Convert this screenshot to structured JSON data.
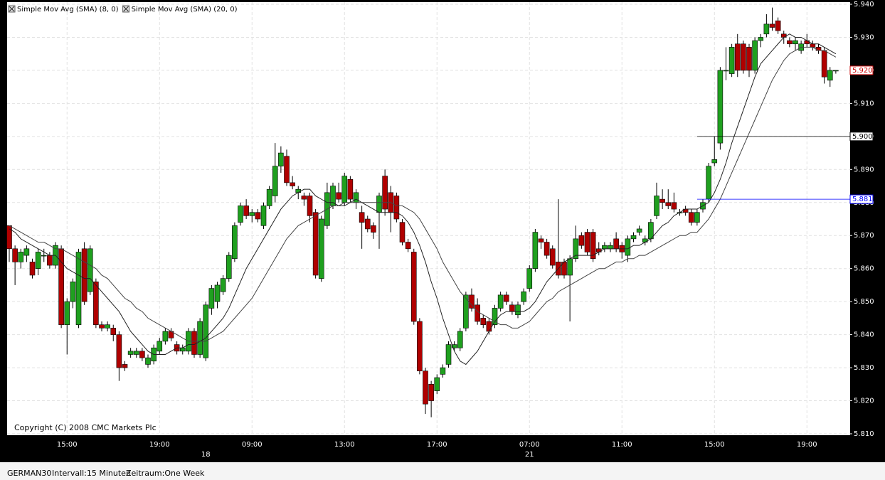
{
  "chart_data": {
    "type": "candlestick",
    "categories": [
      null,
      null,
      null,
      null,
      null,
      null,
      null,
      null,
      null,
      null,
      "15:00",
      null,
      null,
      null,
      null,
      null,
      null,
      null,
      null,
      null,
      null,
      null,
      null,
      null,
      null,
      null,
      "19:00",
      null,
      null,
      null,
      null,
      null,
      null,
      null,
      null,
      null,
      null,
      null,
      null,
      null,
      null,
      null,
      "09:00",
      null,
      null,
      null,
      null,
      null,
      null,
      null,
      null,
      null,
      null,
      null,
      null,
      null,
      null,
      null,
      "13:00",
      null,
      null,
      null,
      null,
      null,
      null,
      null,
      null,
      null,
      null,
      null,
      null,
      null,
      null,
      null,
      "17:00",
      null,
      null,
      null,
      null,
      null,
      null,
      null,
      null,
      null,
      null,
      null,
      null,
      null,
      null,
      null,
      "07:00",
      null,
      null,
      null,
      null,
      null,
      null,
      null,
      null,
      null,
      null,
      null,
      null,
      null,
      null,
      null,
      "11:00",
      null,
      null,
      null,
      null,
      null,
      null,
      null,
      null,
      null,
      null,
      null,
      null,
      null,
      null,
      null,
      "15:00",
      null,
      null,
      null,
      null,
      null,
      null,
      null,
      null,
      null,
      null,
      null,
      null,
      null,
      null,
      null,
      "19:00",
      null,
      null,
      null,
      null,
      null
    ],
    "day_labels": [
      null,
      null,
      null,
      null,
      null,
      null,
      null,
      null,
      null,
      null,
      null,
      null,
      null,
      null,
      null,
      null,
      null,
      null,
      null,
      null,
      null,
      null,
      null,
      null,
      null,
      null,
      null,
      null,
      null,
      null,
      null,
      null,
      null,
      null,
      "18",
      null,
      null,
      null,
      null,
      null,
      null,
      null,
      null,
      null,
      null,
      null,
      null,
      null,
      null,
      null,
      null,
      null,
      null,
      null,
      null,
      null,
      null,
      null,
      null,
      null,
      null,
      null,
      null,
      null,
      null,
      null,
      null,
      null,
      null,
      null,
      null,
      null,
      null,
      null,
      null,
      null,
      null,
      null,
      null,
      null,
      null,
      null,
      null,
      null,
      null,
      null,
      null,
      null,
      null,
      null,
      "21",
      null,
      null,
      null,
      null,
      null,
      null,
      null,
      null,
      null,
      null,
      null,
      null,
      null,
      null,
      null,
      null,
      null,
      null,
      null,
      null,
      null,
      null,
      null,
      null,
      null,
      null,
      null,
      null,
      null,
      null,
      null,
      null,
      null,
      null,
      null,
      null,
      null,
      null,
      null,
      null,
      null,
      null,
      null,
      null,
      null,
      null,
      null,
      null,
      null,
      null,
      null,
      null
    ],
    "open": [
      5.873,
      5.866,
      5.862,
      5.864,
      5.862,
      5.86,
      5.864,
      5.864,
      5.861,
      5.866,
      5.843,
      5.85,
      5.843,
      5.866,
      5.853,
      5.856,
      5.843,
      5.842,
      5.842,
      5.84,
      5.831,
      5.834,
      5.834,
      5.835,
      5.831,
      5.832,
      5.835,
      5.838,
      5.841,
      5.837,
      5.835,
      5.835,
      5.841,
      5.834,
      5.833,
      5.848,
      5.85,
      5.853,
      5.857,
      5.863,
      5.874,
      5.879,
      5.876,
      5.877,
      5.873,
      5.879,
      5.882,
      5.891,
      5.894,
      5.886,
      5.883,
      5.882,
      5.882,
      5.877,
      5.857,
      5.873,
      5.879,
      5.883,
      5.88,
      5.887,
      5.88,
      5.877,
      5.875,
      5.873,
      5.877,
      5.888,
      5.883,
      5.882,
      5.874,
      5.868,
      5.865,
      5.844,
      5.829,
      5.825,
      5.823,
      5.828,
      5.831,
      5.836,
      5.836,
      5.842,
      5.852,
      5.849,
      5.845,
      5.844,
      5.843,
      5.848,
      5.852,
      5.849,
      5.846,
      5.85,
      5.854,
      5.86,
      5.869,
      5.868,
      5.866,
      5.862,
      5.862,
      5.858,
      5.863,
      5.87,
      5.871,
      5.871,
      5.866,
      5.866,
      5.866,
      5.869,
      5.867,
      5.864,
      5.869,
      5.871,
      5.868,
      5.869,
      5.876,
      5.881,
      5.88,
      5.88,
      5.877,
      5.878,
      5.877,
      5.874,
      5.878,
      5.881,
      5.892,
      5.898,
      5.92,
      5.919,
      5.928,
      5.928,
      5.927,
      5.92,
      5.929,
      5.931,
      5.934,
      5.935,
      5.931,
      5.929,
      5.928,
      5.926,
      5.929,
      5.928,
      5.927,
      5.926,
      5.917,
      5.92
    ],
    "high": [
      5.873,
      5.867,
      5.866,
      5.867,
      5.863,
      5.866,
      5.866,
      5.865,
      5.868,
      5.867,
      5.851,
      5.857,
      5.866,
      5.868,
      5.867,
      5.857,
      5.844,
      5.844,
      5.843,
      5.841,
      5.832,
      5.836,
      5.836,
      5.836,
      5.834,
      5.837,
      5.839,
      5.842,
      5.842,
      5.838,
      5.837,
      5.842,
      5.842,
      5.845,
      5.85,
      5.855,
      5.856,
      5.858,
      5.865,
      5.874,
      5.88,
      5.881,
      5.878,
      5.878,
      5.88,
      5.885,
      5.898,
      5.897,
      5.896,
      5.888,
      5.885,
      5.883,
      5.883,
      5.878,
      5.876,
      5.886,
      5.886,
      5.886,
      5.889,
      5.888,
      5.884,
      5.879,
      5.876,
      5.874,
      5.883,
      5.89,
      5.885,
      5.883,
      5.875,
      5.869,
      5.866,
      5.845,
      5.83,
      5.826,
      5.828,
      5.831,
      5.838,
      5.838,
      5.842,
      5.853,
      5.854,
      5.851,
      5.846,
      5.845,
      5.849,
      5.853,
      5.853,
      5.85,
      5.85,
      5.854,
      5.861,
      5.872,
      5.87,
      5.869,
      5.867,
      5.881,
      5.863,
      5.864,
      5.873,
      5.871,
      5.872,
      5.872,
      5.868,
      5.868,
      5.868,
      5.871,
      5.868,
      5.87,
      5.871,
      5.873,
      5.87,
      5.875,
      5.886,
      5.884,
      5.884,
      5.883,
      5.878,
      5.879,
      5.878,
      5.878,
      5.881,
      5.892,
      5.9,
      5.921,
      5.927,
      5.928,
      5.931,
      5.929,
      5.928,
      5.93,
      5.931,
      5.937,
      5.939,
      5.936,
      5.932,
      5.93,
      5.93,
      5.929,
      5.931,
      5.929,
      5.928,
      5.927,
      5.921,
      5.92
    ],
    "low": [
      5.862,
      5.855,
      5.86,
      5.862,
      5.857,
      5.858,
      5.862,
      5.86,
      5.86,
      5.842,
      5.834,
      5.848,
      5.842,
      5.849,
      5.852,
      5.842,
      5.841,
      5.841,
      5.838,
      5.826,
      5.829,
      5.833,
      5.833,
      5.832,
      5.83,
      5.831,
      5.834,
      5.837,
      5.838,
      5.834,
      5.834,
      5.834,
      5.833,
      5.833,
      5.832,
      5.846,
      5.848,
      5.852,
      5.856,
      5.862,
      5.873,
      5.875,
      5.874,
      5.874,
      5.872,
      5.878,
      5.88,
      5.889,
      5.885,
      5.884,
      5.881,
      5.879,
      5.874,
      5.857,
      5.856,
      5.872,
      5.878,
      5.88,
      5.879,
      5.88,
      5.878,
      5.866,
      5.871,
      5.869,
      5.866,
      5.876,
      5.871,
      5.874,
      5.867,
      5.865,
      5.843,
      5.828,
      5.816,
      5.815,
      5.822,
      5.827,
      5.83,
      5.835,
      5.835,
      5.841,
      5.847,
      5.843,
      5.842,
      5.84,
      5.842,
      5.847,
      5.849,
      5.846,
      5.845,
      5.849,
      5.853,
      5.859,
      5.866,
      5.863,
      5.86,
      5.857,
      5.857,
      5.844,
      5.862,
      5.866,
      5.864,
      5.862,
      5.864,
      5.865,
      5.865,
      5.865,
      5.863,
      5.862,
      5.868,
      5.87,
      5.867,
      5.868,
      5.875,
      5.878,
      5.878,
      5.877,
      5.876,
      5.876,
      5.873,
      5.873,
      5.877,
      5.88,
      5.891,
      5.896,
      5.917,
      5.918,
      5.918,
      5.919,
      5.918,
      5.919,
      5.927,
      5.93,
      5.932,
      5.931,
      5.928,
      5.927,
      5.926,
      5.925,
      5.927,
      5.926,
      5.925,
      5.916,
      5.915,
      5.919
    ],
    "close": [
      5.866,
      5.862,
      5.865,
      5.866,
      5.858,
      5.865,
      5.864,
      5.861,
      5.867,
      5.843,
      5.85,
      5.856,
      5.865,
      5.85,
      5.866,
      5.843,
      5.842,
      5.843,
      5.84,
      5.83,
      5.83,
      5.835,
      5.835,
      5.833,
      5.833,
      5.836,
      5.838,
      5.841,
      5.839,
      5.835,
      5.836,
      5.841,
      5.834,
      5.844,
      5.849,
      5.854,
      5.855,
      5.857,
      5.864,
      5.873,
      5.879,
      5.876,
      5.877,
      5.875,
      5.879,
      5.884,
      5.891,
      5.895,
      5.886,
      5.885,
      5.884,
      5.881,
      5.876,
      5.858,
      5.875,
      5.883,
      5.885,
      5.881,
      5.888,
      5.881,
      5.883,
      5.874,
      5.872,
      5.871,
      5.882,
      5.878,
      5.877,
      5.875,
      5.868,
      5.866,
      5.844,
      5.829,
      5.819,
      5.82,
      5.827,
      5.83,
      5.837,
      5.837,
      5.841,
      5.852,
      5.848,
      5.844,
      5.843,
      5.841,
      5.848,
      5.852,
      5.85,
      5.847,
      5.849,
      5.853,
      5.86,
      5.871,
      5.868,
      5.864,
      5.861,
      5.858,
      5.858,
      5.863,
      5.869,
      5.867,
      5.865,
      5.863,
      5.865,
      5.867,
      5.867,
      5.866,
      5.865,
      5.869,
      5.87,
      5.872,
      5.869,
      5.874,
      5.882,
      5.88,
      5.879,
      5.878,
      5.877,
      5.877,
      5.874,
      5.877,
      5.88,
      5.891,
      5.893,
      5.92,
      5.92,
      5.927,
      5.92,
      5.92,
      5.92,
      5.929,
      5.93,
      5.934,
      5.933,
      5.932,
      5.93,
      5.928,
      5.929,
      5.928,
      5.928,
      5.927,
      5.926,
      5.918,
      5.92,
      5.92
    ],
    "up_color": "#1fa01f",
    "down_color": "#b00000",
    "series": [
      {
        "name": "Simple Mov Avg (SMA) (8, 0)",
        "color": "#222222",
        "values": [
          5.872,
          5.871,
          5.869,
          5.868,
          5.867,
          5.866,
          5.865,
          5.864,
          5.864,
          5.862,
          5.86,
          5.859,
          5.858,
          5.857,
          5.857,
          5.855,
          5.853,
          5.851,
          5.849,
          5.847,
          5.844,
          5.841,
          5.839,
          5.837,
          5.835,
          5.834,
          5.834,
          5.834,
          5.835,
          5.836,
          5.836,
          5.837,
          5.837,
          5.838,
          5.839,
          5.841,
          5.843,
          5.845,
          5.848,
          5.852,
          5.856,
          5.86,
          5.863,
          5.866,
          5.869,
          5.872,
          5.875,
          5.878,
          5.88,
          5.882,
          5.883,
          5.884,
          5.884,
          5.882,
          5.881,
          5.88,
          5.88,
          5.879,
          5.879,
          5.88,
          5.881,
          5.88,
          5.879,
          5.878,
          5.877,
          5.877,
          5.877,
          5.877,
          5.876,
          5.874,
          5.871,
          5.867,
          5.862,
          5.856,
          5.851,
          5.845,
          5.84,
          5.835,
          5.832,
          5.831,
          5.833,
          5.835,
          5.838,
          5.841,
          5.844,
          5.846,
          5.847,
          5.847,
          5.847,
          5.847,
          5.848,
          5.85,
          5.853,
          5.856,
          5.858,
          5.86,
          5.862,
          5.863,
          5.864,
          5.864,
          5.864,
          5.864,
          5.865,
          5.866,
          5.866,
          5.866,
          5.866,
          5.866,
          5.867,
          5.867,
          5.868,
          5.869,
          5.871,
          5.873,
          5.874,
          5.876,
          5.877,
          5.878,
          5.878,
          5.878,
          5.879,
          5.88,
          5.883,
          5.887,
          5.892,
          5.898,
          5.903,
          5.908,
          5.913,
          5.918,
          5.922,
          5.924,
          5.926,
          5.928,
          5.93,
          5.931,
          5.93,
          5.93,
          5.929,
          5.928,
          5.928,
          5.927,
          5.926,
          5.925
        ]
      },
      {
        "name": "Simple Mov Avg (SMA) (20, 0)",
        "color": "#444444",
        "values": [
          5.873,
          5.872,
          5.871,
          5.87,
          5.869,
          5.868,
          5.868,
          5.867,
          5.866,
          5.866,
          5.865,
          5.864,
          5.863,
          5.862,
          5.861,
          5.86,
          5.858,
          5.857,
          5.855,
          5.853,
          5.851,
          5.85,
          5.848,
          5.847,
          5.845,
          5.844,
          5.843,
          5.842,
          5.841,
          5.84,
          5.839,
          5.838,
          5.838,
          5.838,
          5.838,
          5.839,
          5.84,
          5.841,
          5.843,
          5.845,
          5.847,
          5.849,
          5.851,
          5.854,
          5.857,
          5.86,
          5.863,
          5.866,
          5.869,
          5.871,
          5.873,
          5.874,
          5.875,
          5.876,
          5.877,
          5.878,
          5.879,
          5.879,
          5.88,
          5.88,
          5.88,
          5.88,
          5.88,
          5.88,
          5.88,
          5.88,
          5.88,
          5.879,
          5.879,
          5.878,
          5.877,
          5.875,
          5.872,
          5.869,
          5.866,
          5.862,
          5.859,
          5.856,
          5.853,
          5.851,
          5.849,
          5.847,
          5.846,
          5.845,
          5.844,
          5.843,
          5.843,
          5.842,
          5.842,
          5.843,
          5.844,
          5.846,
          5.848,
          5.85,
          5.851,
          5.853,
          5.854,
          5.855,
          5.856,
          5.857,
          5.858,
          5.859,
          5.86,
          5.86,
          5.861,
          5.862,
          5.862,
          5.863,
          5.863,
          5.864,
          5.864,
          5.865,
          5.866,
          5.867,
          5.868,
          5.869,
          5.87,
          5.87,
          5.871,
          5.871,
          5.873,
          5.875,
          5.878,
          5.881,
          5.885,
          5.889,
          5.893,
          5.897,
          5.901,
          5.905,
          5.909,
          5.913,
          5.917,
          5.92,
          5.923,
          5.925,
          5.926,
          5.927,
          5.927,
          5.927,
          5.926,
          5.926,
          5.925,
          5.924
        ]
      }
    ],
    "ylim": [
      5.81,
      5.94
    ],
    "yticks": [
      {
        "value": 5.81,
        "label": "5.810"
      },
      {
        "value": 5.82,
        "label": "5.820"
      },
      {
        "value": 5.83,
        "label": "5.830"
      },
      {
        "value": 5.84,
        "label": "5.840"
      },
      {
        "value": 5.85,
        "label": "5.850"
      },
      {
        "value": 5.86,
        "label": "5.860"
      },
      {
        "value": 5.87,
        "label": "5.870"
      },
      {
        "value": 5.88,
        "label": "5.880"
      },
      {
        "value": 5.89,
        "label": "5.890"
      },
      {
        "value": 5.9,
        "label": "5.900"
      },
      {
        "value": 5.91,
        "label": "5.910"
      },
      {
        "value": 5.92,
        "label": "5.920"
      },
      {
        "value": 5.93,
        "label": "5.930"
      },
      {
        "value": 5.94,
        "label": "5.940"
      }
    ],
    "grid": true,
    "hlines": [
      {
        "value": 5.9,
        "label": "5.900",
        "color": "#000000"
      },
      {
        "value": 5.881,
        "label": "5.881",
        "color": "#0000ff"
      }
    ],
    "last_price": {
      "value": 5.92,
      "label": "5.920",
      "color": "#cc0000"
    },
    "footnote": "Copyright (C) 2008 CMC Markets Plc",
    "symbol": "GERMAN30",
    "interval": "Intervall:15 Minuten",
    "period": "Zeitraum:One Week"
  }
}
